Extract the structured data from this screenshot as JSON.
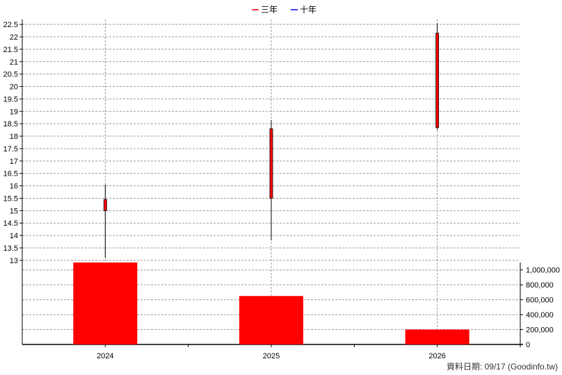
{
  "chart_data": {
    "type": "candlestick-volume",
    "legend": [
      {
        "label": "三年",
        "color": "#ff0000"
      },
      {
        "label": "十年",
        "color": "#0000ff"
      }
    ],
    "categories": [
      "2024",
      "2025",
      "2026"
    ],
    "price": {
      "ylim": [
        12.8,
        22.7
      ],
      "ticks": [
        "13",
        "13.5",
        "14",
        "14.5",
        "15",
        "15.5",
        "16",
        "16.5",
        "17",
        "17.5",
        "18",
        "18.5",
        "19",
        "19.5",
        "20",
        "20.5",
        "21",
        "21.5",
        "22",
        "22.5"
      ],
      "candles": [
        {
          "x": "2024",
          "open": 15.0,
          "close": 15.45,
          "high": 16.05,
          "low": 13.1
        },
        {
          "x": "2025",
          "open": 15.5,
          "close": 18.3,
          "high": 18.65,
          "low": 13.8
        },
        {
          "x": "2026",
          "open": 18.35,
          "close": 22.15,
          "high": 22.55,
          "low": 18.25
        }
      ]
    },
    "volume": {
      "ylim": [
        0,
        1100000
      ],
      "ticks": [
        "0",
        "200,000",
        "400,000",
        "600,000",
        "800,000",
        "1,000,000"
      ],
      "values": [
        1100000,
        650000,
        200000
      ]
    },
    "grid": true,
    "colors": {
      "candle": "#ff0000",
      "volume": "#ff0000",
      "grid": "#999999",
      "wick": "#000000"
    }
  },
  "footer_text": "資料日期: 09/17  (Goodinfo.tw)"
}
